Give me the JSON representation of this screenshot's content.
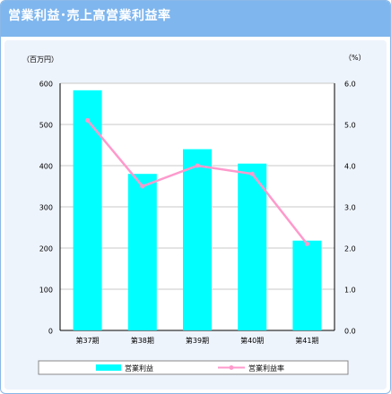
{
  "header": {
    "title": "営業利益･売上高営業利益率"
  },
  "colors": {
    "header_bg": "#7fb6ee",
    "panel_bg": "#eef4fc",
    "bar": "#00ffff",
    "line": "#ff99cc",
    "grid": "#c8c8c8"
  },
  "chart_data": {
    "type": "bar",
    "categories": [
      "第37期",
      "第38期",
      "第39期",
      "第40期",
      "第41期"
    ],
    "series": [
      {
        "name": "営業利益",
        "type": "bar",
        "axis": "left",
        "values": [
          583,
          380,
          440,
          405,
          218
        ]
      },
      {
        "name": "営業利益率",
        "type": "line",
        "axis": "right",
        "values": [
          5.1,
          3.5,
          4.0,
          3.8,
          2.1
        ]
      }
    ],
    "ylabel_left": "（百万円）",
    "ylabel_right": "（%）",
    "ylim_left": [
      0,
      600
    ],
    "ylim_right": [
      0,
      6.0
    ],
    "yticks_left": [
      "0",
      "100",
      "200",
      "300",
      "400",
      "500",
      "600"
    ],
    "yticks_right": [
      "0.0",
      "1.0",
      "2.0",
      "3.0",
      "4.0",
      "5.0",
      "6.0"
    ],
    "grid": true,
    "legend_position": "bottom"
  }
}
